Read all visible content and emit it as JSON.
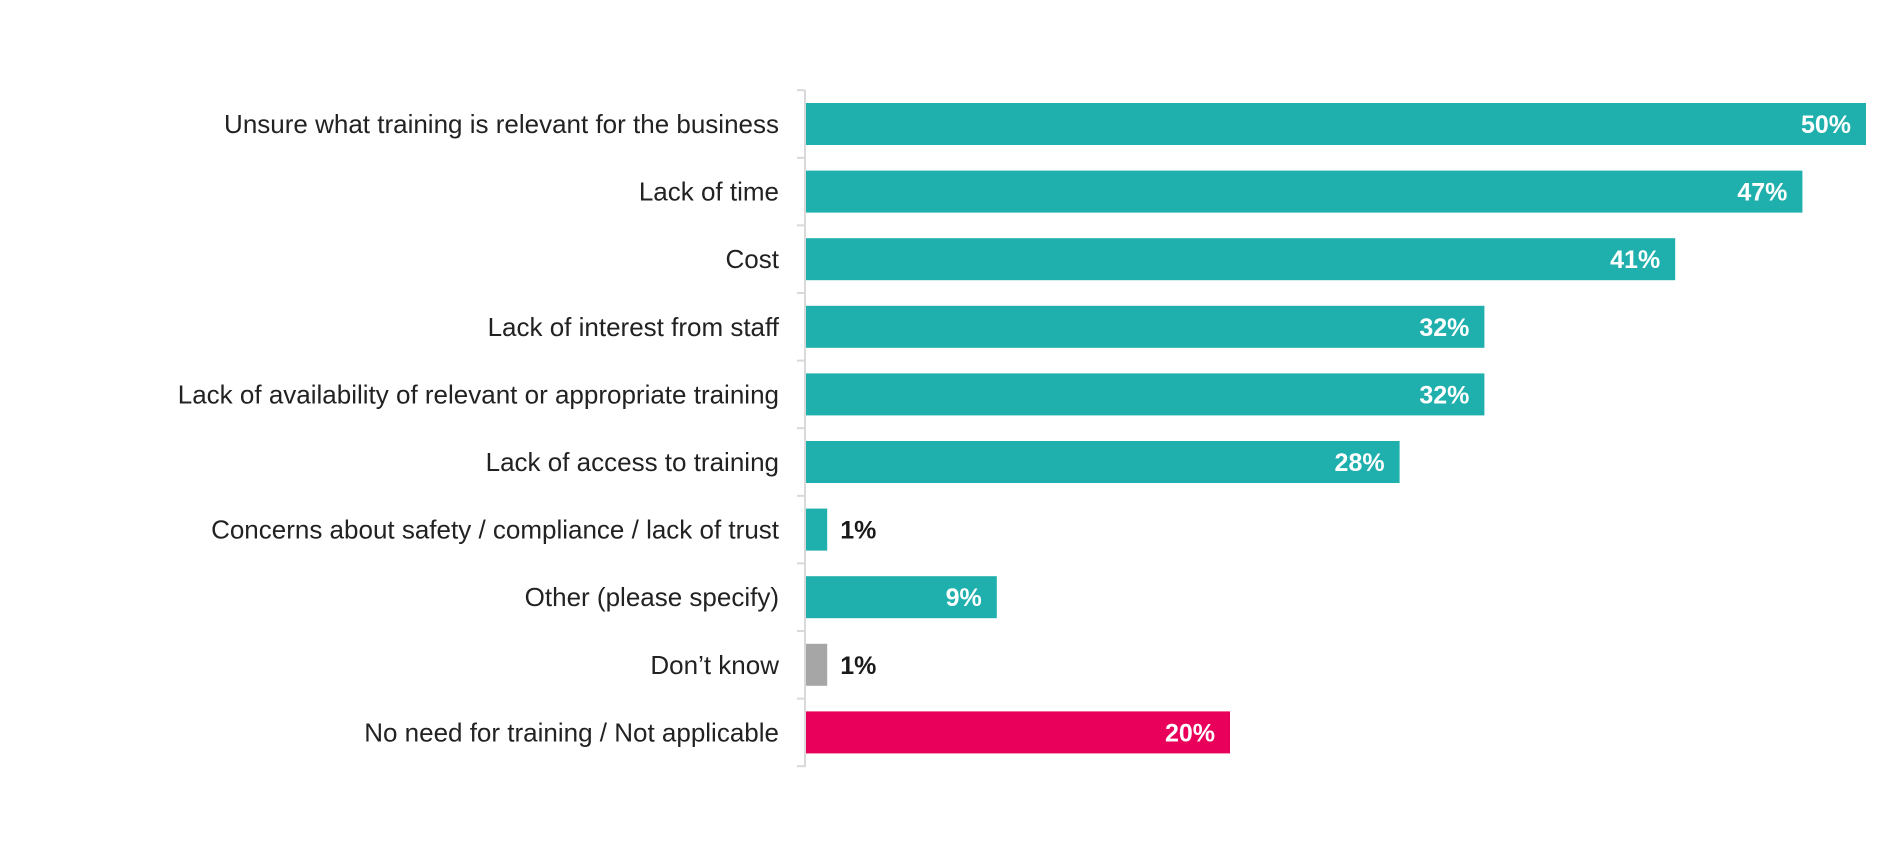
{
  "chart_data": {
    "type": "bar",
    "orientation": "horizontal",
    "categories": [
      "Unsure what training is relevant for the business",
      "Lack of time",
      "Cost",
      "Lack of interest from staff",
      "Lack of availability of relevant or appropriate training",
      "Lack of access to training",
      "Concerns about safety / compliance / lack of trust",
      "Other (please specify)",
      "Don’t know",
      "No need for training / Not applicable"
    ],
    "values": [
      50,
      47,
      41,
      32,
      32,
      28,
      1,
      9,
      1,
      20
    ],
    "value_labels": [
      "50%",
      "47%",
      "41%",
      "32%",
      "32%",
      "28%",
      "1%",
      "9%",
      "1%",
      "20%"
    ],
    "bar_colors": [
      "#1fb0ad",
      "#1fb0ad",
      "#1fb0ad",
      "#1fb0ad",
      "#1fb0ad",
      "#1fb0ad",
      "#1fb0ad",
      "#1fb0ad",
      "#a6a6a6",
      "#e8005a"
    ],
    "title": "",
    "xlabel": "",
    "ylabel": "",
    "xlim": [
      0,
      50
    ],
    "grid": false,
    "legend": "none"
  },
  "colors": {
    "label_inside": "#ffffff",
    "label_outside": "#1a1a1a",
    "category_text": "#222222",
    "axis_line": "#d9d9d9"
  }
}
